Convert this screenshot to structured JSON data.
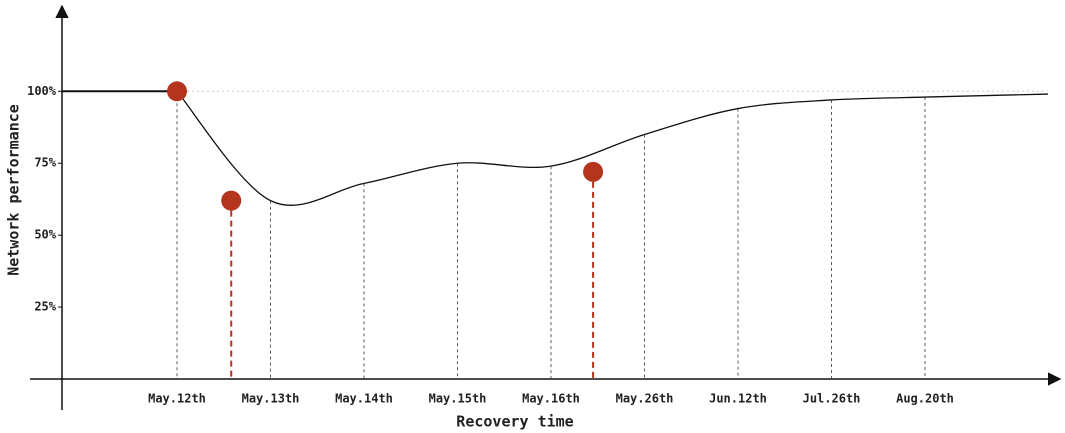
{
  "chart_data": {
    "type": "line",
    "x_label": "Recovery time",
    "y_label": "Network performance",
    "categories": [
      "May.12th",
      "May.13th",
      "May.14th",
      "May.15th",
      "May.16th",
      "May.26th",
      "Jun.12th",
      "Jul.26th",
      "Aug.20th"
    ],
    "series": [
      {
        "color": "#111111",
        "values": [
          100,
          62,
          68,
          75,
          74,
          85,
          94,
          97,
          98
        ]
      }
    ],
    "markers": {
      "color": "#b5341e",
      "values": [
        100,
        62,
        72
      ]
    },
    "ylim": [
      0,
      130
    ],
    "yticks": [
      {
        "value": 25,
        "label": "25%"
      },
      {
        "value": 50,
        "label": "50%"
      },
      {
        "value": 75,
        "label": "75%"
      },
      {
        "value": 100,
        "label": "100%"
      }
    ],
    "grid": true
  }
}
